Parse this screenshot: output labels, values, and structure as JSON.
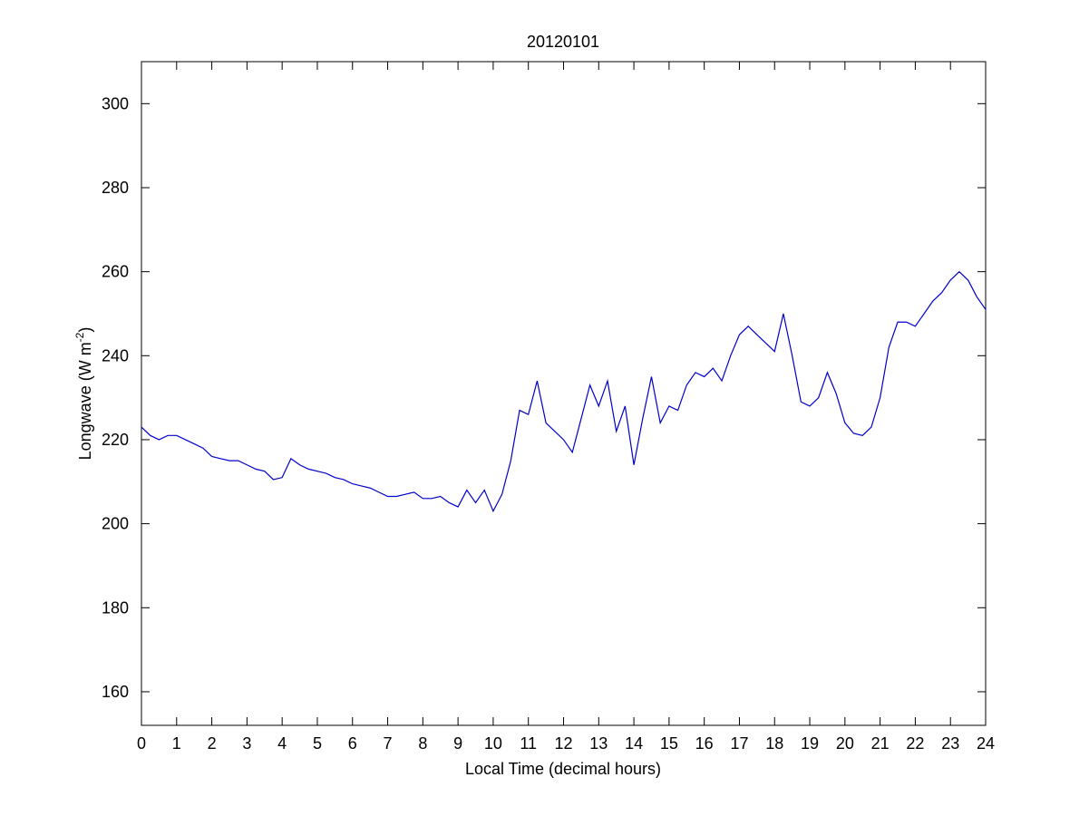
{
  "chart_data": {
    "type": "line",
    "title": "20120101",
    "xlabel": "Local Time (decimal hours)",
    "ylabel": [
      "Longwave (W m",
      "-2",
      ")"
    ],
    "xlim": [
      0,
      24
    ],
    "ylim": [
      152,
      310
    ],
    "xticks": [
      0,
      1,
      2,
      3,
      4,
      5,
      6,
      7,
      8,
      9,
      10,
      11,
      12,
      13,
      14,
      15,
      16,
      17,
      18,
      19,
      20,
      21,
      22,
      23,
      24
    ],
    "yticks": [
      160,
      180,
      200,
      220,
      240,
      260,
      280,
      300
    ],
    "grid": false,
    "series": [
      {
        "name": "Longwave",
        "color": "#0000cc",
        "x": [
          0,
          0.25,
          0.5,
          0.75,
          1,
          1.25,
          1.5,
          1.75,
          2,
          2.25,
          2.5,
          2.75,
          3,
          3.25,
          3.5,
          3.75,
          4,
          4.25,
          4.5,
          4.75,
          5,
          5.25,
          5.5,
          5.75,
          6,
          6.25,
          6.5,
          6.75,
          7,
          7.25,
          7.5,
          7.75,
          8,
          8.25,
          8.5,
          8.75,
          9,
          9.25,
          9.5,
          9.75,
          10,
          10.25,
          10.5,
          10.75,
          11,
          11.25,
          11.5,
          11.75,
          12,
          12.25,
          12.5,
          12.75,
          13,
          13.25,
          13.5,
          13.75,
          14,
          14.25,
          14.5,
          14.75,
          15,
          15.25,
          15.5,
          15.75,
          16,
          16.25,
          16.5,
          16.75,
          17,
          17.25,
          17.5,
          17.75,
          18,
          18.25,
          18.5,
          18.75,
          19,
          19.25,
          19.5,
          19.75,
          20,
          20.25,
          20.5,
          20.75,
          21,
          21.25,
          21.5,
          21.75,
          22,
          22.25,
          22.5,
          22.75,
          23,
          23.25,
          23.5,
          23.75,
          24
        ],
        "values": [
          223,
          221,
          220,
          221,
          221,
          220,
          219,
          218,
          216,
          215.5,
          215,
          215,
          214,
          213,
          212.5,
          210.5,
          211,
          215.5,
          214,
          213,
          212.5,
          212,
          211,
          210.5,
          209.5,
          209,
          208.5,
          207.5,
          206.5,
          206.5,
          207,
          207.5,
          206,
          206,
          206.5,
          205,
          204,
          208,
          205,
          208,
          203,
          207,
          215,
          227,
          226,
          234,
          224,
          222,
          220,
          217,
          225,
          233,
          228,
          234,
          222,
          228,
          214,
          225,
          235,
          224,
          228,
          227,
          233,
          236,
          235,
          237,
          234,
          240,
          245,
          247,
          245,
          243,
          241,
          250,
          240,
          229,
          228,
          230,
          236,
          231,
          224,
          221.5,
          221,
          223,
          230,
          242,
          248,
          248,
          247,
          250,
          253,
          255,
          258,
          260,
          258,
          254,
          251
        ]
      }
    ]
  }
}
